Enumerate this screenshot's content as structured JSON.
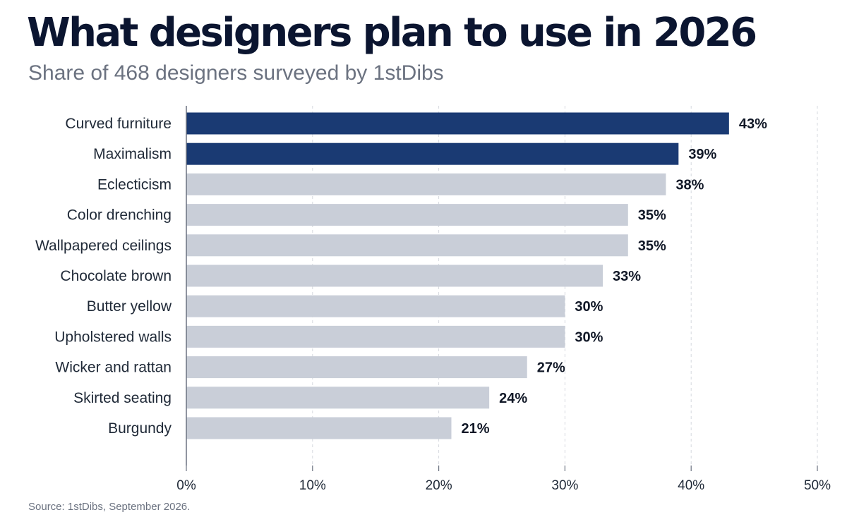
{
  "header": {
    "title": "What designers plan to use in 2026",
    "subtitle": "Share of 468 designers surveyed by 1stDibs"
  },
  "footer": {
    "source": "Source: 1stDibs, September 2026."
  },
  "colors": {
    "highlight": "#1a3a73",
    "muted": "#c9ced8",
    "grid": "#d6d9df",
    "axis": "#6b7280"
  },
  "chart_data": {
    "type": "bar",
    "orientation": "horizontal",
    "title": "What designers plan to use in 2026",
    "subtitle": "Share of 468 designers surveyed by 1stDibs",
    "categories": [
      "Curved furniture",
      "Maximalism",
      "Eclecticism",
      "Color drenching",
      "Wallpapered ceilings",
      "Chocolate brown",
      "Butter yellow",
      "Upholstered walls",
      "Wicker and rattan",
      "Skirted seating",
      "Burgundy"
    ],
    "values": [
      43,
      39,
      38,
      35,
      35,
      33,
      30,
      30,
      27,
      24,
      21
    ],
    "value_labels": [
      "43%",
      "39%",
      "38%",
      "35%",
      "35%",
      "33%",
      "30%",
      "30%",
      "27%",
      "24%",
      "21%"
    ],
    "highlighted": [
      true,
      true,
      false,
      false,
      false,
      false,
      false,
      false,
      false,
      false,
      false
    ],
    "xlim": [
      0,
      50
    ],
    "xticks": [
      0,
      10,
      20,
      30,
      40,
      50
    ],
    "xtick_labels": [
      "0%",
      "10%",
      "20%",
      "30%",
      "40%",
      "50%"
    ],
    "grid": "vertical dashed",
    "legend": "none"
  }
}
